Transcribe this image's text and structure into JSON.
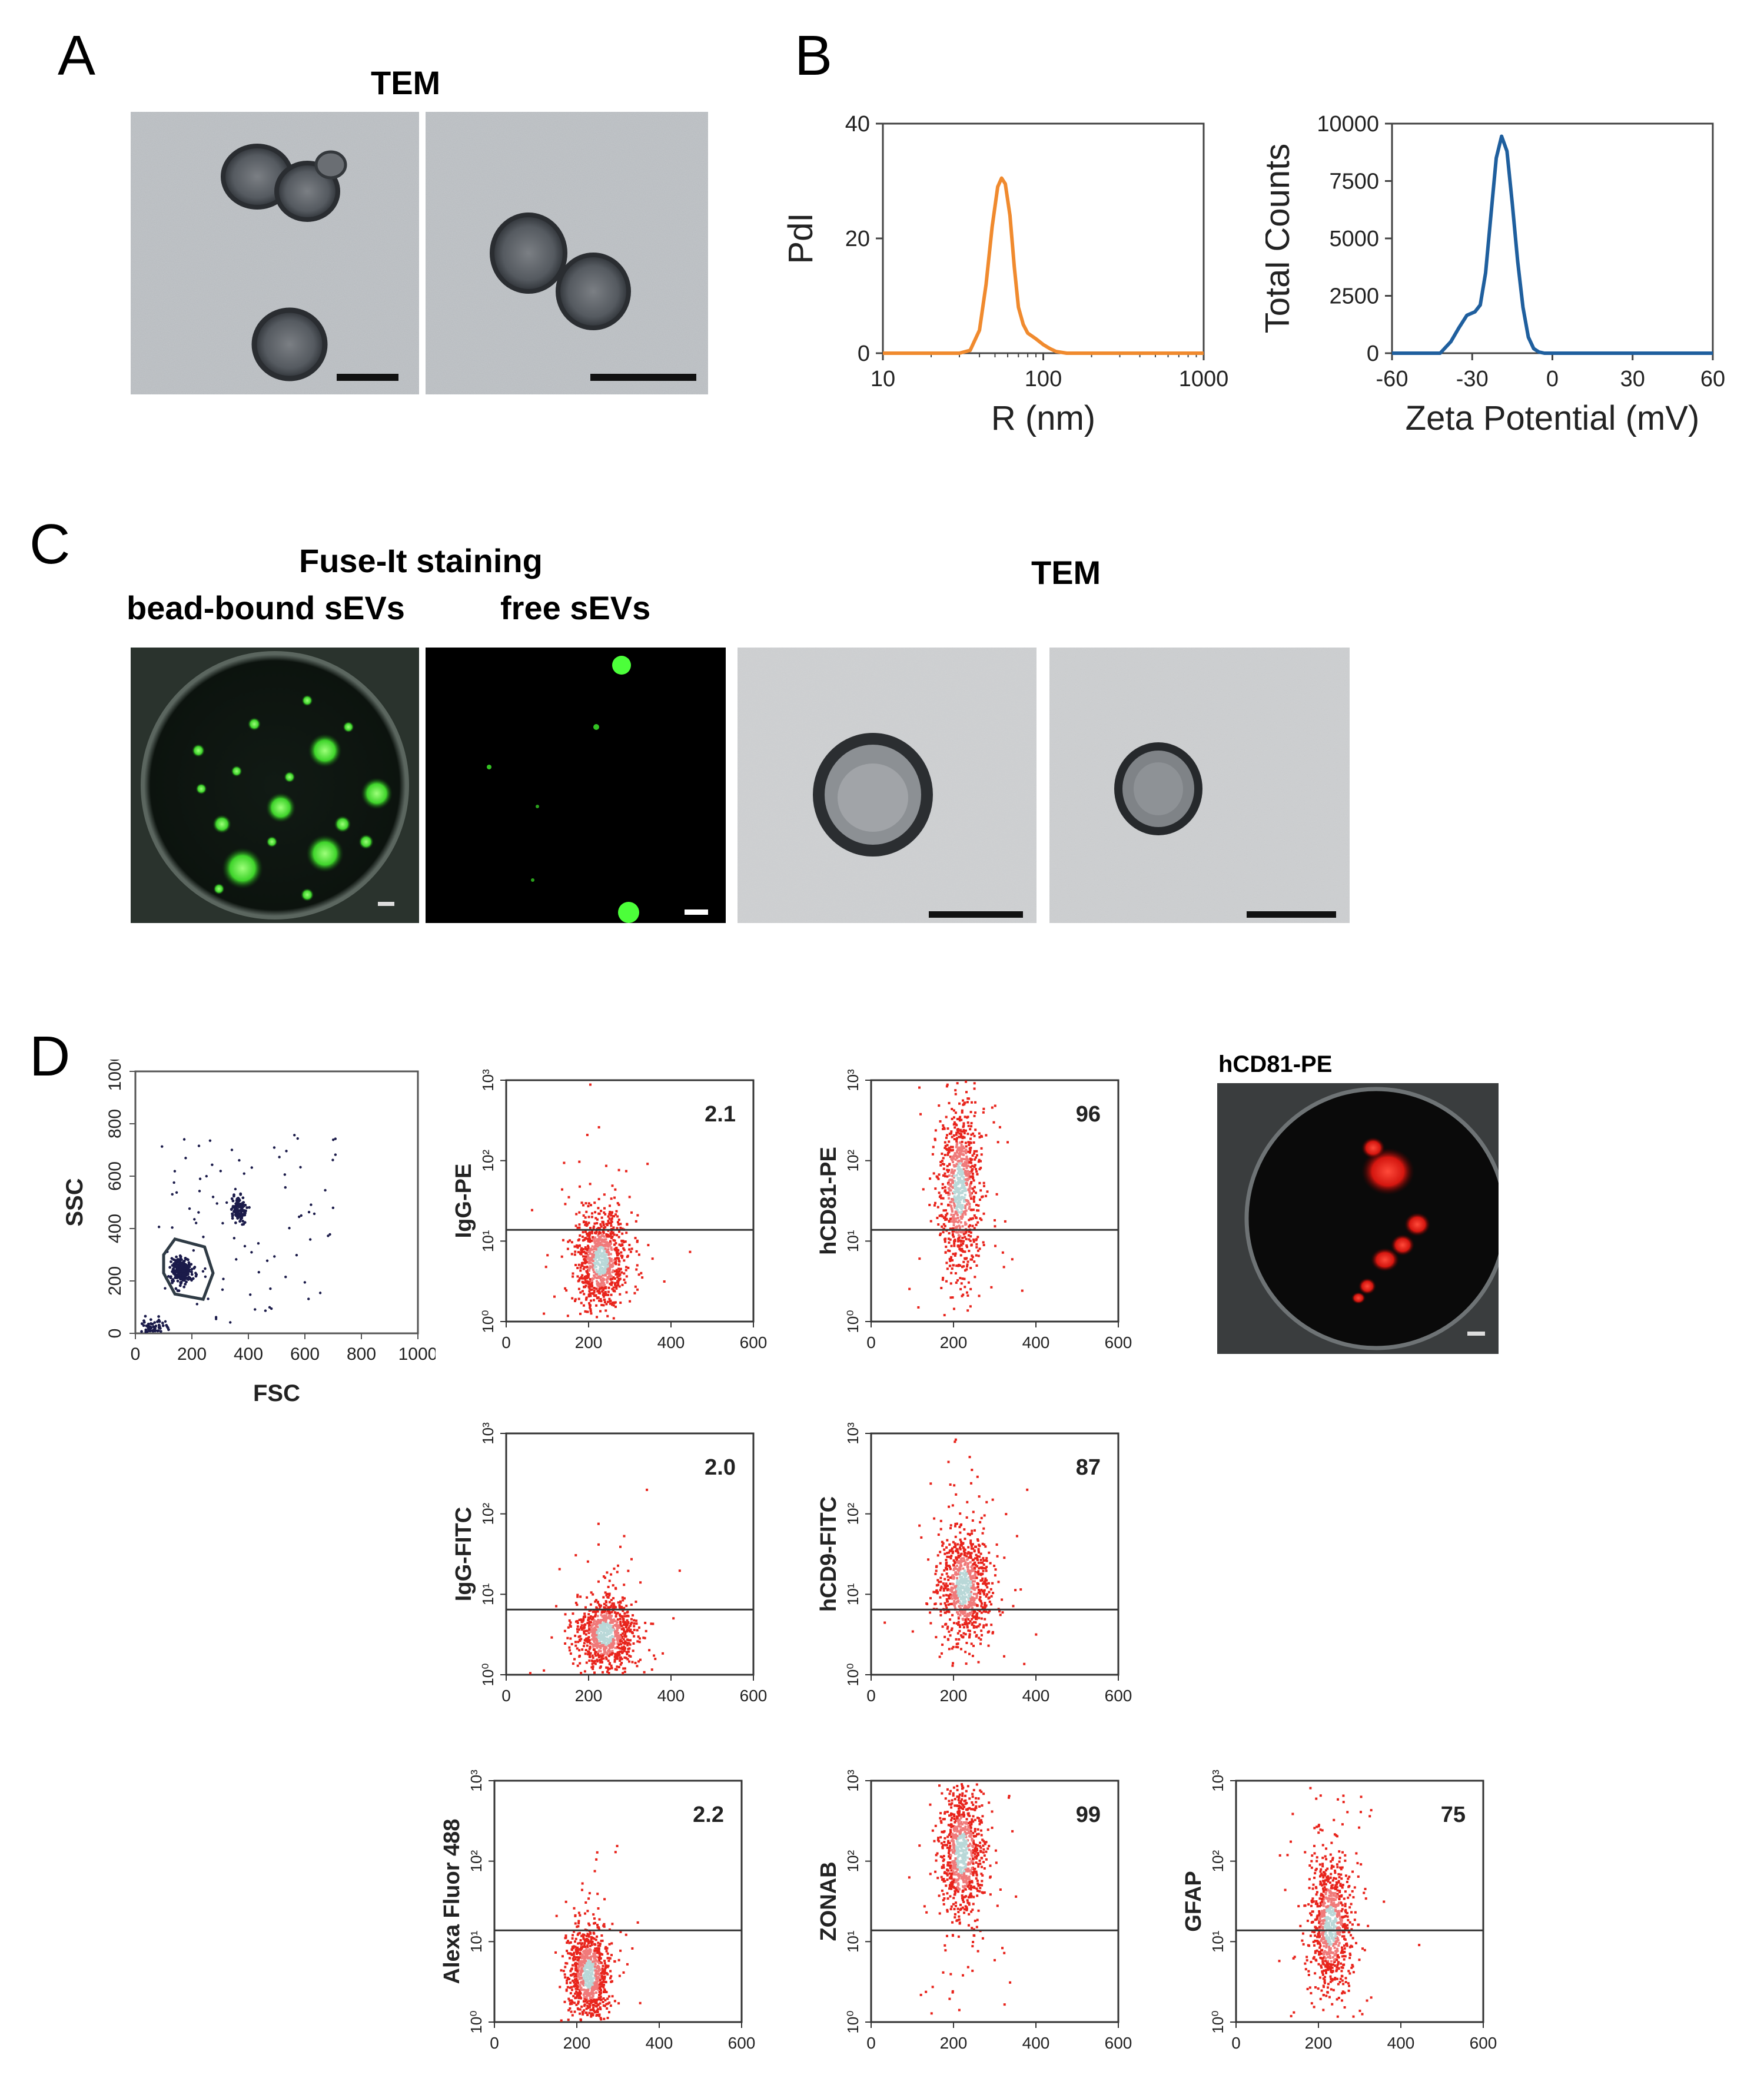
{
  "panels": {
    "A": {
      "letter": "A",
      "title": "TEM"
    },
    "B": {
      "letter": "B"
    },
    "C": {
      "letter": "C",
      "staining_title": "Fuse-It staining",
      "bead_label": "bead-bound sEVs",
      "free_label": "free sEVs",
      "tem_title": "TEM"
    },
    "D": {
      "letter": "D",
      "image_label": "hCD81-PE"
    }
  },
  "chart_data": [
    {
      "id": "B-left",
      "type": "line",
      "xlabel": "R (nm)",
      "ylabel": "PdI",
      "xscale": "log",
      "xlim": [
        10,
        1000
      ],
      "ylim": [
        0,
        40
      ],
      "xticks": [
        "10",
        "100",
        "1000"
      ],
      "yticks": [
        "0",
        "20",
        "40"
      ],
      "color": "#f08a2e",
      "series": [
        {
          "x": [
            10,
            30,
            35,
            40,
            44,
            48,
            52,
            55,
            58,
            62,
            66,
            70,
            75,
            80,
            90,
            100,
            110,
            120,
            140,
            200,
            1000
          ],
          "y": [
            0,
            0,
            0.5,
            4,
            12,
            22,
            29,
            30.5,
            29.5,
            24,
            15,
            8,
            5,
            3.5,
            2.5,
            1.5,
            0.8,
            0.3,
            0,
            0,
            0
          ]
        }
      ]
    },
    {
      "id": "B-right",
      "type": "line",
      "xlabel": "Zeta Potential (mV)",
      "ylabel": "Total Counts",
      "xlim": [
        -60,
        60
      ],
      "ylim": [
        0,
        10000
      ],
      "xticks": [
        "-60",
        "-30",
        "0",
        "30",
        "60"
      ],
      "yticks": [
        "0",
        "2500",
        "5000",
        "7500",
        "10000"
      ],
      "color": "#1f5f9e",
      "series": [
        {
          "x": [
            -60,
            -42,
            -38,
            -35,
            -32,
            -29,
            -27,
            -25,
            -23,
            -21,
            -19,
            -17,
            -15,
            -13,
            -11,
            -9,
            -7,
            -5,
            -3,
            0,
            60
          ],
          "y": [
            0,
            0,
            500,
            1100,
            1650,
            1800,
            2100,
            3500,
            6000,
            8500,
            9450,
            8800,
            6500,
            4000,
            2000,
            700,
            200,
            50,
            0,
            0,
            0
          ]
        }
      ]
    },
    {
      "id": "D-gate",
      "type": "scatter",
      "xlabel": "FSC",
      "ylabel": "SSC",
      "xlim": [
        0,
        1000
      ],
      "ylim": [
        0,
        1000
      ],
      "xticks": [
        "0",
        "200",
        "400",
        "600",
        "800",
        "1000"
      ],
      "yticks": [
        "0",
        "200",
        "400",
        "600",
        "800",
        "1000"
      ],
      "color": "#1b1b4a"
    },
    {
      "id": "D-IgG-PE",
      "type": "scatter",
      "ylabel": "IgG-PE",
      "percent": "2.1",
      "gate": 0.38,
      "center": [
        230,
        0.25
      ],
      "spread": [
        30,
        0.1
      ],
      "outliers": 0.3
    },
    {
      "id": "D-hCD81-PE",
      "type": "scatter",
      "ylabel": "hCD81-PE",
      "percent": "96",
      "gate": 0.38,
      "center": [
        215,
        0.55
      ],
      "spread": [
        25,
        0.18
      ],
      "outliers": 0.3
    },
    {
      "id": "D-IgG-FITC",
      "type": "scatter",
      "ylabel": "IgG-FITC",
      "percent": "2.0",
      "gate": 0.27,
      "center": [
        240,
        0.17
      ],
      "spread": [
        35,
        0.08
      ],
      "outliers": 0.2
    },
    {
      "id": "D-hCD9-FITC",
      "type": "scatter",
      "ylabel": "hCD9-FITC",
      "percent": "87",
      "gate": 0.27,
      "center": [
        225,
        0.36
      ],
      "spread": [
        30,
        0.12
      ],
      "outliers": 0.3
    },
    {
      "id": "D-AF488",
      "type": "scatter",
      "ylabel": "Alexa Fluor 488",
      "percent": "2.2",
      "gate": 0.38,
      "center": [
        230,
        0.2
      ],
      "spread": [
        25,
        0.1
      ],
      "outliers": 0.2
    },
    {
      "id": "D-ZONAB",
      "type": "scatter",
      "ylabel": "ZONAB",
      "percent": "99",
      "gate": 0.38,
      "center": [
        220,
        0.7
      ],
      "spread": [
        25,
        0.14
      ],
      "outliers": 0.3
    },
    {
      "id": "D-GFAP",
      "type": "scatter",
      "ylabel": "GFAP",
      "percent": "75",
      "gate": 0.38,
      "center": [
        230,
        0.4
      ],
      "spread": [
        25,
        0.14
      ],
      "outliers": 0.4
    }
  ],
  "flow_axes": {
    "xticks": [
      "0",
      "200",
      "400",
      "600"
    ],
    "yticks": [
      "10⁰",
      "10¹",
      "10²",
      "10³"
    ]
  }
}
